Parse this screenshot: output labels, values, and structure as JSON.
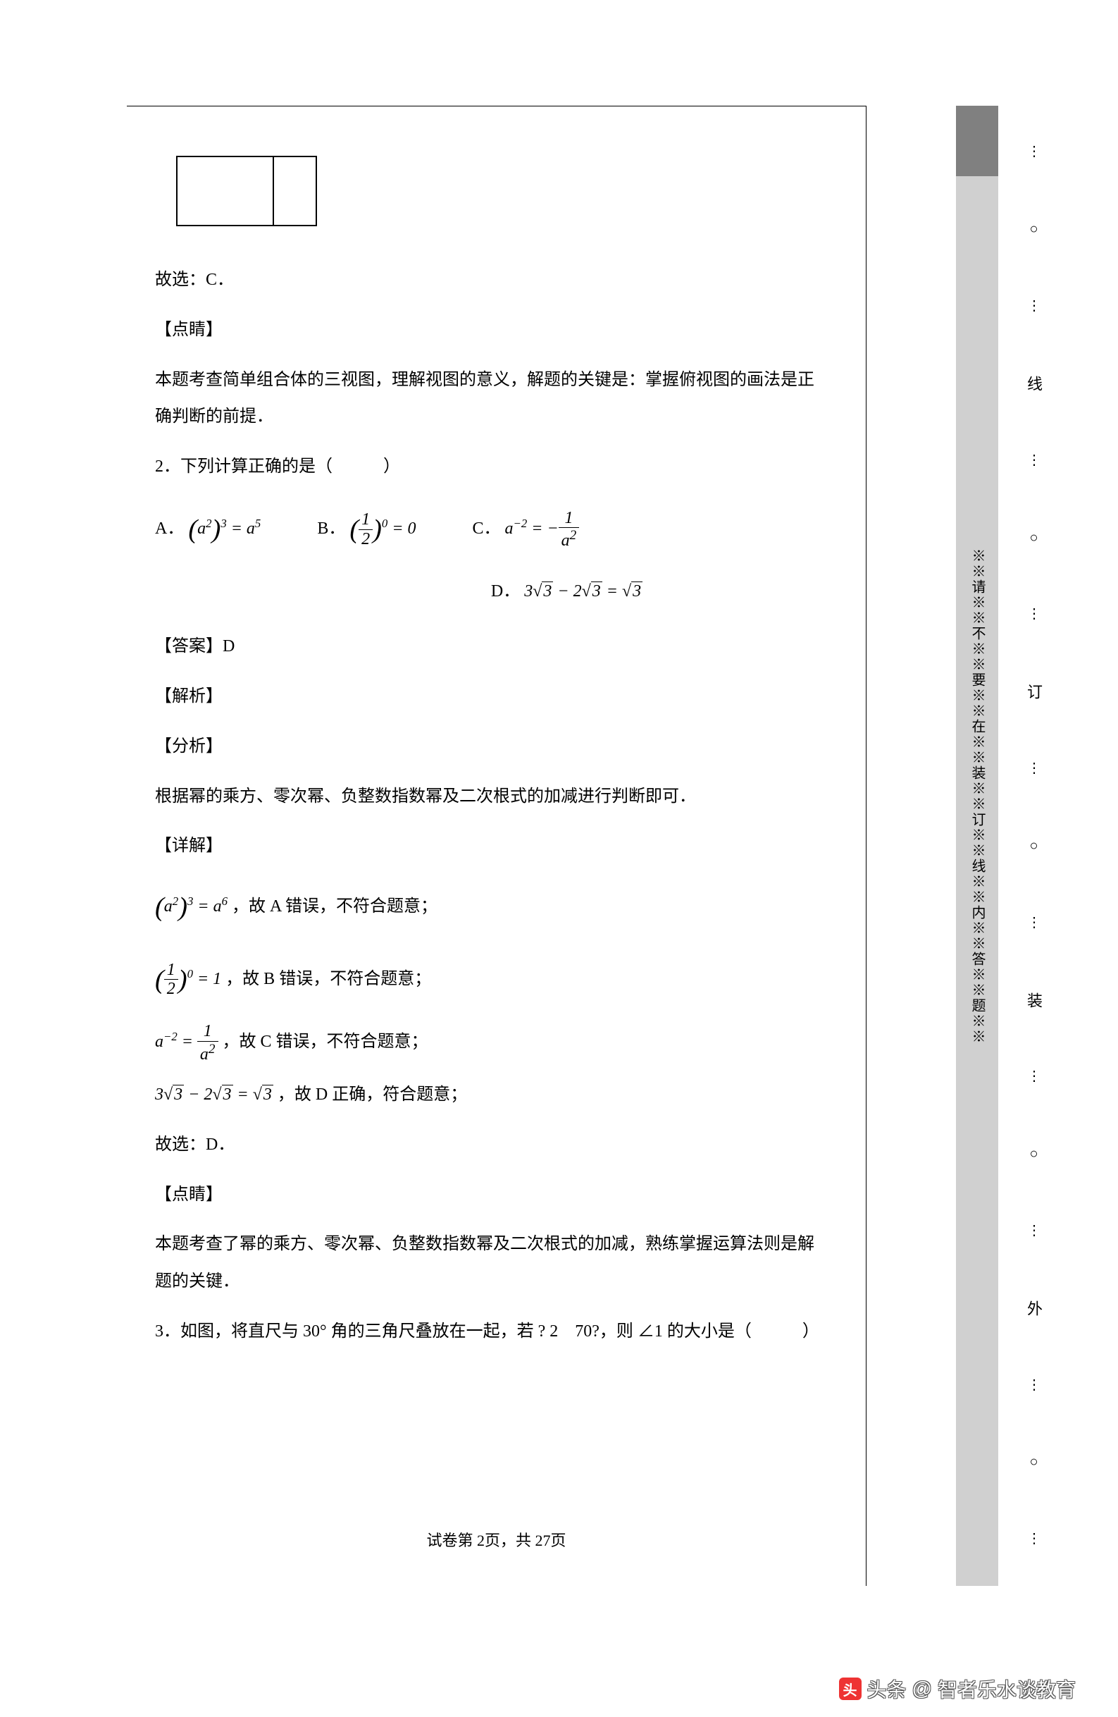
{
  "q1": {
    "answer_line": "故选：C．",
    "section_hint": "【点睛】",
    "hint_text": "本题考查简单组合体的三视图，理解视图的意义，解题的关键是：掌握俯视图的画法是正确判断的前提．"
  },
  "q2": {
    "stem": "2．下列计算正确的是（　　　）",
    "optA_label": "A．",
    "optB_label": "B．",
    "optC_label": "C．",
    "optD_label": "D．",
    "answer_label": "【答案】D",
    "section_analysis": "【解析】",
    "section_breakdown": "【分析】",
    "analysis_text": "根据幂的乘方、零次幂、负整数指数幂及二次根式的加减进行判断即可．",
    "section_detail": "【详解】",
    "detail_a_tail": "，故 A 错误，不符合题意；",
    "detail_b_tail": "，故 B 错误，不符合题意；",
    "detail_c_tail": "，故 C 错误，不符合题意；",
    "detail_d_tail": "，故 D 正确，符合题意；",
    "conclusion": "故选：D．",
    "section_hint": "【点睛】",
    "hint_text": "本题考查了幂的乘方、零次幂、负整数指数幂及二次根式的加减，熟练掌握运算法则是解题的关键．"
  },
  "q3": {
    "stem": "3．如图，将直尺与 30° 角的三角尺叠放在一起，若 ? 2　70?，则 ∠1 的大小是（　　　）"
  },
  "gutter": {
    "vertical_note": "※※请※※不※※要※※在※※装※※订※※线※※内※※答※※题※※",
    "binding_chars": [
      "线",
      "订",
      "装",
      "外"
    ],
    "dots": "⋮",
    "circle": "○"
  },
  "footer": {
    "text": "试卷第 2页，共 27页"
  },
  "watermark": {
    "prefix": "头条",
    "at": "@",
    "author": "智者乐水谈教育"
  }
}
